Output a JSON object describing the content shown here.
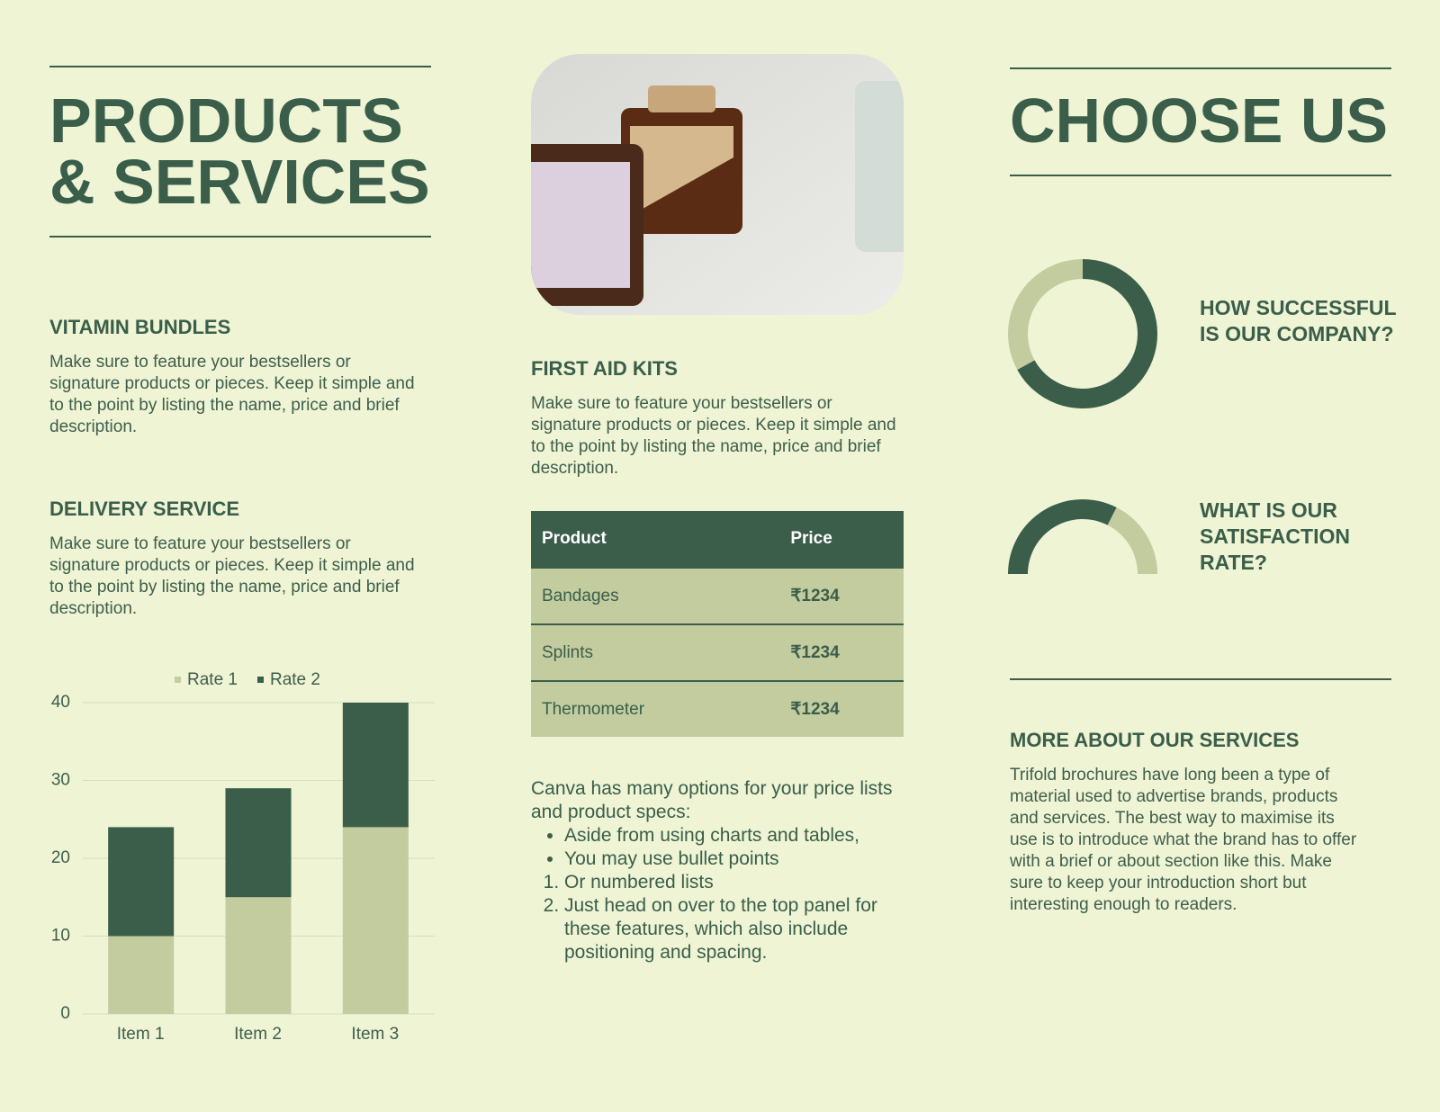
{
  "left": {
    "title_lines": [
      "PRODUCTS",
      "& SERVICES"
    ],
    "sections": [
      {
        "heading": "VITAMIN BUNDLES",
        "body": "Make sure to feature your bestsellers or signature products or pieces. Keep it simple and to the point by listing the name, price and brief description."
      },
      {
        "heading": "DELIVERY SERVICE",
        "body": "Make sure to feature your bestsellers or signature products or pieces. Keep it simple and to the point by listing the name, price and brief description."
      }
    ],
    "chart_data": {
      "type": "bar",
      "stacked": true,
      "categories": [
        "Item 1",
        "Item 2",
        "Item 3"
      ],
      "series": [
        {
          "name": "Rate 1",
          "color": "#c3cc9f",
          "values": [
            10,
            15,
            24
          ]
        },
        {
          "name": "Rate 2",
          "color": "#3a5e4a",
          "values": [
            14,
            14,
            16
          ]
        }
      ],
      "ylim": [
        0,
        40
      ],
      "yticks": [
        0,
        10,
        20,
        30,
        40
      ],
      "grid": true,
      "legend": "top"
    }
  },
  "middle": {
    "heading": "FIRST AID KITS",
    "body": "Make sure to feature your bestsellers or signature products or pieces. Keep it simple and to the point by listing the name, price and brief description.",
    "table": {
      "header": [
        "Product",
        "Price"
      ],
      "rows": [
        [
          "Bandages",
          "₹1234"
        ],
        [
          "Splints",
          "₹1234"
        ],
        [
          "Thermometer",
          "₹1234"
        ]
      ]
    },
    "intro": "Canva has many options for your price lists and product specs:",
    "bullets": [
      "Aside from using charts and tables,",
      "You may use bullet points"
    ],
    "numbered": [
      "Or numbered lists",
      "Just head on over to the top panel for these features, which also include positioning and spacing."
    ]
  },
  "right": {
    "title": "CHOOSE US",
    "donut": {
      "type": "pie",
      "question": "HOW SUCCESSFUL IS OUR COMPANY?",
      "values": [
        67,
        33
      ],
      "colors": [
        "#3a5e4a",
        "#c3cc9f"
      ]
    },
    "half_donut": {
      "type": "pie",
      "question": "WHAT IS OUR SATISFACTION RATE?",
      "values": [
        65,
        35
      ],
      "colors": [
        "#3a5e4a",
        "#c3cc9f"
      ]
    },
    "about": {
      "heading": "MORE ABOUT OUR SERVICES",
      "body": "Trifold brochures have long been a type of material used to advertise brands, products and services. The best way to maximise its use is to introduce what the brand has to offer with a brief or about section like this. Make sure to keep your introduction short but interesting enough to readers."
    }
  }
}
